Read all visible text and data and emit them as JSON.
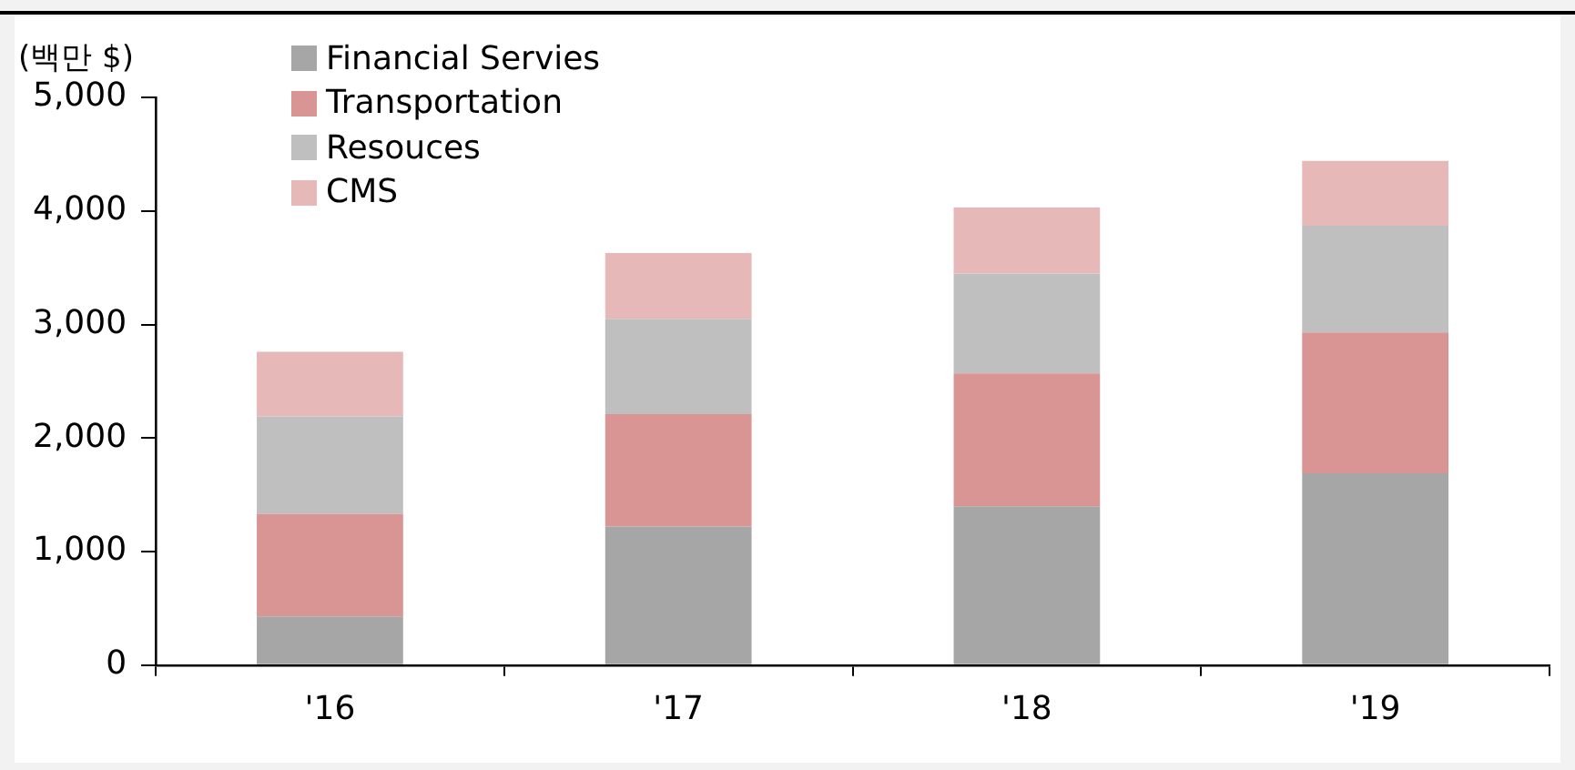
{
  "chart_data": {
    "type": "bar",
    "stacked": true,
    "ylabel": "(백만 $)",
    "categories": [
      "'16",
      "'17",
      "'18",
      "'19"
    ],
    "series": [
      {
        "name": "Financial Servies",
        "color": "#a6a6a6",
        "values": [
          430,
          1220,
          1400,
          1690
        ]
      },
      {
        "name": "Transportation",
        "color": "#d99594",
        "values": [
          900,
          990,
          1170,
          1240
        ]
      },
      {
        "name": "Resouces",
        "color": "#bfbfbf",
        "values": [
          860,
          840,
          880,
          940
        ]
      },
      {
        "name": "CMS",
        "color": "#e6b8b7",
        "values": [
          570,
          580,
          580,
          570
        ]
      }
    ],
    "ylim": [
      0,
      5000
    ],
    "yticks": [
      {
        "value": 0,
        "label": "0"
      },
      {
        "value": 1000,
        "label": "1,000"
      },
      {
        "value": 2000,
        "label": "2,000"
      },
      {
        "value": 3000,
        "label": "3,000"
      },
      {
        "value": 4000,
        "label": "4,000"
      },
      {
        "value": 5000,
        "label": "5,000"
      }
    ],
    "grid": false,
    "legend": "top left"
  }
}
